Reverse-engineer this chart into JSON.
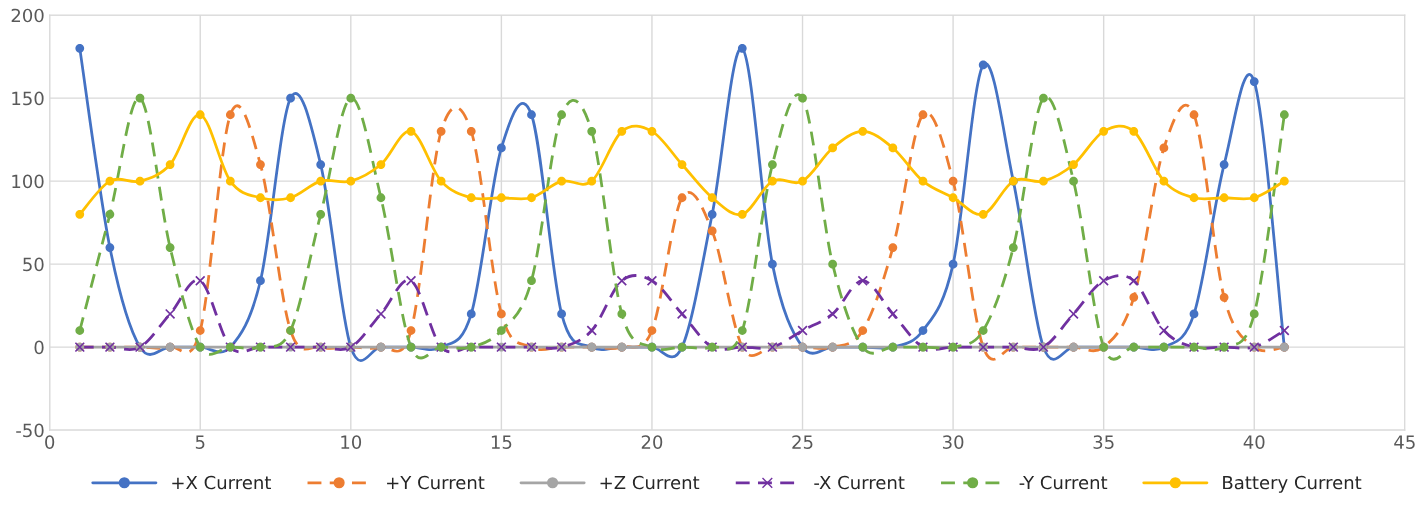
{
  "chart_data": {
    "type": "line",
    "x": [
      1,
      2,
      3,
      4,
      5,
      6,
      7,
      8,
      9,
      10,
      11,
      12,
      13,
      14,
      15,
      16,
      17,
      18,
      19,
      20,
      21,
      22,
      23,
      24,
      25,
      26,
      27,
      28,
      29,
      30,
      31,
      32,
      33,
      34,
      35,
      36,
      37,
      38,
      39,
      40,
      41
    ],
    "series": [
      {
        "name": "+X Current",
        "color": "#4472c4",
        "marker": "circle",
        "line_style": "solid",
        "values": [
          180,
          60,
          0,
          0,
          0,
          0,
          40,
          150,
          110,
          0,
          0,
          0,
          0,
          20,
          120,
          140,
          20,
          0,
          0,
          0,
          0,
          80,
          180,
          50,
          0,
          0,
          0,
          0,
          10,
          50,
          170,
          100,
          0,
          0,
          0,
          0,
          0,
          20,
          110,
          160,
          0
        ]
      },
      {
        "name": "+Y Current",
        "color": "#ed7d31",
        "marker": "circle",
        "line_style": "dashed",
        "values": [
          0,
          0,
          0,
          0,
          10,
          140,
          110,
          10,
          0,
          0,
          0,
          10,
          130,
          130,
          20,
          0,
          0,
          0,
          0,
          10,
          90,
          70,
          0,
          0,
          0,
          0,
          10,
          60,
          140,
          100,
          0,
          0,
          0,
          0,
          0,
          30,
          120,
          140,
          30,
          0,
          0
        ]
      },
      {
        "name": "+Z Current",
        "color": "#a5a5a5",
        "marker": "circle",
        "line_style": "solid",
        "values": [
          0,
          0,
          0,
          0,
          0,
          0,
          0,
          0,
          0,
          0,
          0,
          0,
          0,
          0,
          0,
          0,
          0,
          0,
          0,
          0,
          0,
          0,
          0,
          0,
          0,
          0,
          0,
          0,
          0,
          0,
          0,
          0,
          0,
          0,
          0,
          0,
          0,
          0,
          0,
          0,
          0
        ]
      },
      {
        "name": "-X Current",
        "color": "#7030a0",
        "marker": "cross",
        "line_style": "dashed",
        "values": [
          0,
          0,
          0,
          20,
          40,
          0,
          0,
          0,
          0,
          0,
          20,
          40,
          0,
          0,
          0,
          0,
          0,
          10,
          40,
          40,
          20,
          0,
          0,
          0,
          10,
          20,
          40,
          20,
          0,
          0,
          0,
          0,
          0,
          20,
          40,
          40,
          10,
          0,
          0,
          0,
          10
        ]
      },
      {
        "name": "-Y Current",
        "color": "#70ad47",
        "marker": "circle",
        "line_style": "dashed",
        "values": [
          10,
          80,
          150,
          60,
          0,
          0,
          0,
          10,
          80,
          150,
          90,
          0,
          0,
          0,
          10,
          40,
          140,
          130,
          20,
          0,
          0,
          0,
          10,
          110,
          150,
          50,
          0,
          0,
          0,
          0,
          10,
          60,
          150,
          100,
          0,
          0,
          0,
          0,
          0,
          20,
          140
        ]
      },
      {
        "name": "Battery Current",
        "color": "#ffc000",
        "marker": "circle",
        "line_style": "solid",
        "values": [
          80,
          100,
          100,
          110,
          140,
          100,
          90,
          90,
          100,
          100,
          110,
          130,
          100,
          90,
          90,
          90,
          100,
          100,
          130,
          130,
          110,
          90,
          80,
          100,
          100,
          120,
          130,
          120,
          100,
          90,
          80,
          100,
          100,
          110,
          130,
          130,
          100,
          90,
          90,
          90,
          100
        ]
      }
    ],
    "xlim": [
      0,
      45
    ],
    "xticks": [
      0,
      5,
      10,
      15,
      20,
      25,
      30,
      35,
      40,
      45
    ],
    "ylim": [
      -50,
      200
    ],
    "yticks": [
      -50,
      0,
      50,
      100,
      150,
      200
    ],
    "grid": true,
    "legend": "bottom"
  }
}
